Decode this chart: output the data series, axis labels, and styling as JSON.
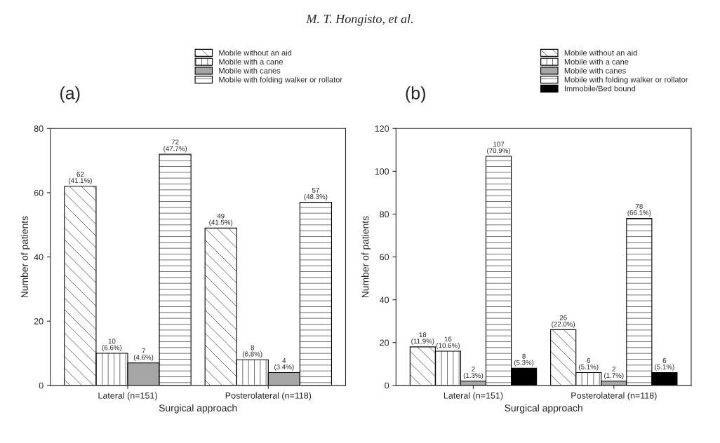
{
  "chart_data": [
    {
      "type": "bar",
      "title": "(a)",
      "xlabel": "Surgical approach",
      "ylabel": "Number of patients",
      "annotations": [
        "M. T. Hongisto, et al."
      ],
      "categories": [
        "Lateral (n=151)",
        "Posterolateral (n=118)"
      ],
      "series": [
        {
          "name": "Mobile without an aid",
          "color": "#000000",
          "values": [
            62,
            49
          ],
          "value_labels": [
            "62\n(41.1%)",
            "49\n(41.5%)"
          ]
        },
        {
          "name": "Mobile with a cane",
          "color": "#000000",
          "values": [
            10,
            8
          ],
          "value_labels": [
            "10\n(6.6%)",
            "8\n(6.8%)"
          ]
        },
        {
          "name": "Mobile with canes",
          "color": "#a6a6a6",
          "values": [
            7,
            4
          ],
          "value_labels": [
            "7\n(4.6%)",
            "4\n(3.4%)"
          ]
        },
        {
          "name": "Mobile with folding walker or rollator",
          "color": "#000000",
          "values": [
            72,
            57
          ],
          "value_labels": [
            "72\n(47.7%)",
            "57\n(48.3%)"
          ]
        }
      ],
      "ylim": [
        0,
        80
      ],
      "yticks": [
        0,
        20,
        40,
        60,
        80
      ],
      "legend": "top right",
      "grid": false
    },
    {
      "type": "bar",
      "title": "(b)",
      "xlabel": "Surgical approach",
      "ylabel": "Number of patients",
      "categories": [
        "Lateral (n=151)",
        "Posterolateral (n=118)"
      ],
      "series": [
        {
          "name": "Mobile without an aid",
          "color": "#000000",
          "values": [
            18,
            26
          ],
          "value_labels": [
            "18\n(11.9%)",
            "26\n(22.0%)"
          ]
        },
        {
          "name": "Mobile with a cane",
          "color": "#000000",
          "values": [
            16,
            6
          ],
          "value_labels": [
            "16\n(10.6%)",
            "6\n(5.1%)"
          ]
        },
        {
          "name": "Mobile with canes",
          "color": "#a6a6a6",
          "values": [
            2,
            2
          ],
          "value_labels": [
            "2\n(1.3%)",
            "2\n(1.7%)"
          ]
        },
        {
          "name": "Mobile with folding walker or rollator",
          "color": "#000000",
          "values": [
            107,
            78
          ],
          "value_labels": [
            "107\n(70.9%)",
            "78\n(66.1%)"
          ]
        },
        {
          "name": "Immobile/Bed bound",
          "color": "#000000",
          "values": [
            8,
            6
          ],
          "value_labels": [
            "8\n(5.3%)",
            "6\n(5.1%)"
          ]
        }
      ],
      "ylim": [
        0,
        120
      ],
      "yticks": [
        0,
        20,
        40,
        60,
        80,
        100,
        120
      ],
      "legend": "top right",
      "grid": false
    }
  ]
}
